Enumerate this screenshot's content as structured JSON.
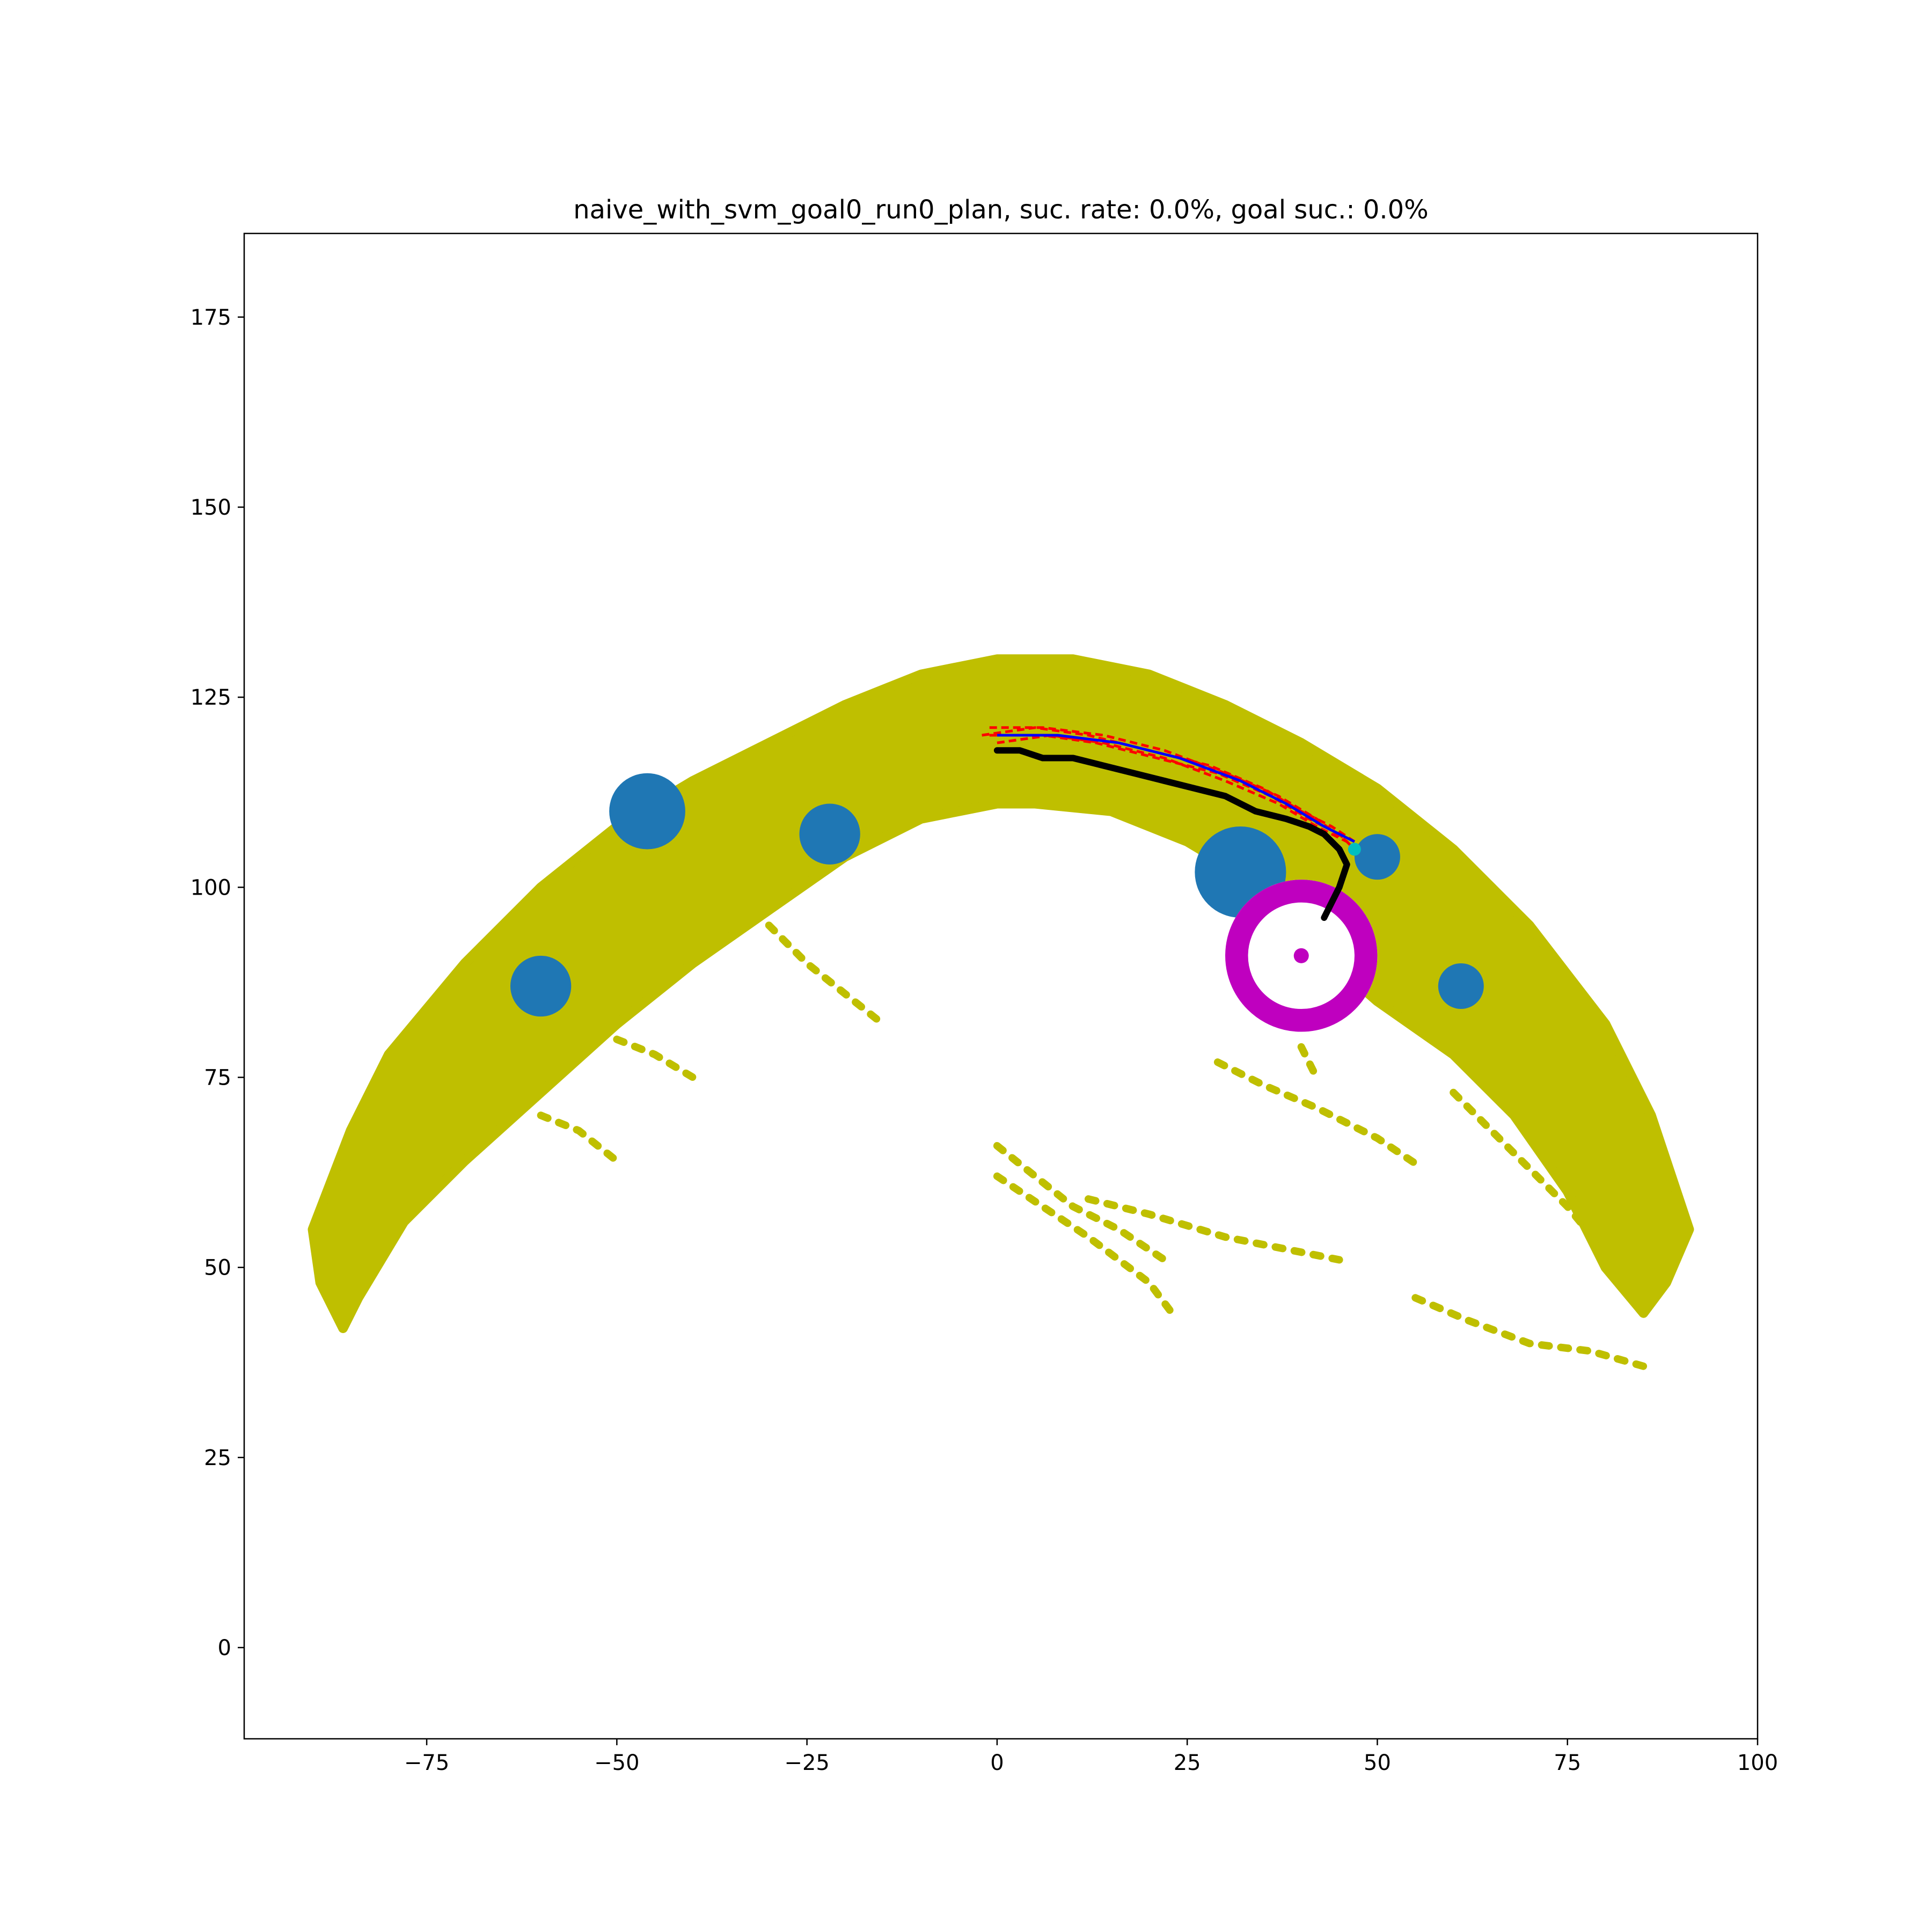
{
  "chart_data": {
    "type": "scatter",
    "title": "naive_with_svm_goal0_run0_plan, suc. rate: 0.0%, goal suc.: 0.0%",
    "xlabel": "",
    "ylabel": "",
    "xlim": [
      -99,
      100
    ],
    "ylim": [
      -12,
      186
    ],
    "xticks": [
      -75,
      -50,
      -25,
      0,
      25,
      50,
      75,
      100
    ],
    "yticks": [
      0,
      25,
      50,
      75,
      100,
      125,
      150,
      175
    ],
    "xtick_labels": [
      "−75",
      "−50",
      "−25",
      "0",
      "25",
      "50",
      "75",
      "100"
    ],
    "ytick_labels": [
      "0",
      "25",
      "50",
      "75",
      "100",
      "125",
      "150",
      "175"
    ],
    "grid": false,
    "colors": {
      "samples": "#bfbf00",
      "obstacles": "#1f77b4",
      "goal_region": "#bf00bf",
      "executed_path": "#000000",
      "planned_paths": "#ff0000",
      "best_plan": "#0000ff",
      "plan_end": "#00bfbf"
    },
    "sample_band": {
      "description_of_shape": "arc",
      "outer_top": [
        [
          -90,
          55
        ],
        [
          -85,
          68
        ],
        [
          -80,
          78
        ],
        [
          -70,
          90
        ],
        [
          -60,
          100
        ],
        [
          -50,
          108
        ],
        [
          -40,
          114
        ],
        [
          -30,
          119
        ],
        [
          -20,
          124
        ],
        [
          -10,
          128
        ],
        [
          0,
          130
        ],
        [
          10,
          130
        ],
        [
          20,
          128
        ],
        [
          30,
          124
        ],
        [
          40,
          119
        ],
        [
          50,
          113
        ],
        [
          60,
          105
        ],
        [
          70,
          95
        ],
        [
          80,
          82
        ],
        [
          86,
          70
        ],
        [
          91,
          55
        ]
      ],
      "inner_bottom": [
        [
          91,
          55
        ],
        [
          88,
          48
        ],
        [
          85,
          44
        ],
        [
          80,
          50
        ],
        [
          75,
          60
        ],
        [
          68,
          70
        ],
        [
          60,
          78
        ],
        [
          50,
          85
        ],
        [
          42,
          92
        ],
        [
          35,
          100
        ],
        [
          25,
          106
        ],
        [
          15,
          110
        ],
        [
          5,
          111
        ],
        [
          0,
          111
        ],
        [
          -10,
          109
        ],
        [
          -20,
          104
        ],
        [
          -30,
          97
        ],
        [
          -40,
          90
        ],
        [
          -50,
          82
        ],
        [
          -60,
          73
        ],
        [
          -70,
          64
        ],
        [
          -78,
          56
        ],
        [
          -84,
          46
        ],
        [
          -86,
          42
        ],
        [
          -89,
          48
        ]
      ]
    },
    "scattered_strands": [
      [
        [
          29,
          77
        ],
        [
          35,
          74
        ],
        [
          42,
          71
        ],
        [
          50,
          67
        ],
        [
          56,
          63
        ]
      ],
      [
        [
          0,
          66
        ],
        [
          5,
          62
        ],
        [
          10,
          58
        ],
        [
          16,
          55
        ],
        [
          22,
          51
        ]
      ],
      [
        [
          0,
          62
        ],
        [
          6,
          58
        ],
        [
          12,
          54
        ],
        [
          20,
          48
        ],
        [
          23,
          44
        ]
      ],
      [
        [
          12,
          59
        ],
        [
          20,
          57
        ],
        [
          30,
          54
        ],
        [
          40,
          52
        ],
        [
          45,
          51
        ]
      ],
      [
        [
          55,
          46
        ],
        [
          62,
          43
        ],
        [
          70,
          40
        ],
        [
          78,
          39
        ],
        [
          85,
          37
        ]
      ],
      [
        [
          60,
          73
        ],
        [
          65,
          68
        ],
        [
          70,
          63
        ],
        [
          75,
          58
        ],
        [
          80,
          52
        ]
      ],
      [
        [
          40,
          79
        ],
        [
          42,
          75
        ]
      ],
      [
        [
          -50,
          80
        ],
        [
          -45,
          78
        ],
        [
          -40,
          75
        ]
      ],
      [
        [
          -30,
          95
        ],
        [
          -25,
          90
        ],
        [
          -20,
          86
        ],
        [
          -15,
          82
        ]
      ],
      [
        [
          -60,
          70
        ],
        [
          -55,
          68
        ],
        [
          -50,
          64
        ]
      ]
    ],
    "obstacles": [
      {
        "x": -60,
        "y": 87,
        "r": 4
      },
      {
        "x": -46,
        "y": 110,
        "r": 5
      },
      {
        "x": -22,
        "y": 107,
        "r": 4
      },
      {
        "x": 32,
        "y": 102,
        "r": 6
      },
      {
        "x": 50,
        "y": 104,
        "r": 3
      },
      {
        "x": 61,
        "y": 87,
        "r": 3
      }
    ],
    "goal": {
      "x": 40,
      "y": 91,
      "r_outer": 10,
      "r_inner": 7
    },
    "executed_path": [
      [
        0,
        118
      ],
      [
        3,
        118
      ],
      [
        6,
        117
      ],
      [
        10,
        117
      ],
      [
        14,
        116
      ],
      [
        18,
        115
      ],
      [
        22,
        114
      ],
      [
        26,
        113
      ],
      [
        30,
        112
      ],
      [
        34,
        110
      ],
      [
        38,
        109
      ],
      [
        41,
        108
      ],
      [
        43,
        107
      ],
      [
        45,
        105
      ],
      [
        46,
        103
      ],
      [
        45,
        100
      ],
      [
        44,
        98
      ],
      [
        43,
        96
      ]
    ],
    "planned_paths": [
      [
        [
          -2,
          120
        ],
        [
          5,
          121
        ],
        [
          12,
          120
        ],
        [
          20,
          118
        ],
        [
          28,
          116
        ],
        [
          35,
          113
        ],
        [
          40,
          110
        ],
        [
          44,
          108
        ],
        [
          47,
          106
        ]
      ],
      [
        [
          -1,
          120
        ],
        [
          6,
          120
        ],
        [
          13,
          119
        ],
        [
          21,
          117
        ],
        [
          29,
          115
        ],
        [
          36,
          112
        ],
        [
          41,
          109
        ],
        [
          45,
          107
        ],
        [
          47,
          105
        ]
      ],
      [
        [
          0,
          119
        ],
        [
          7,
          120
        ],
        [
          14,
          119
        ],
        [
          22,
          117
        ],
        [
          30,
          114
        ],
        [
          37,
          111
        ],
        [
          42,
          108
        ],
        [
          46,
          106
        ],
        [
          47,
          105
        ]
      ],
      [
        [
          -1,
          121
        ],
        [
          6,
          121
        ],
        [
          14,
          120
        ],
        [
          22,
          118
        ],
        [
          30,
          115
        ],
        [
          37,
          112
        ],
        [
          42,
          109
        ],
        [
          46,
          106
        ]
      ]
    ],
    "best_plan": [
      [
        0,
        120
      ],
      [
        8,
        120
      ],
      [
        16,
        119
      ],
      [
        24,
        117
      ],
      [
        32,
        114
      ],
      [
        38,
        111
      ],
      [
        43,
        108
      ],
      [
        47,
        106
      ]
    ],
    "plan_end": {
      "x": 47,
      "y": 105
    }
  }
}
